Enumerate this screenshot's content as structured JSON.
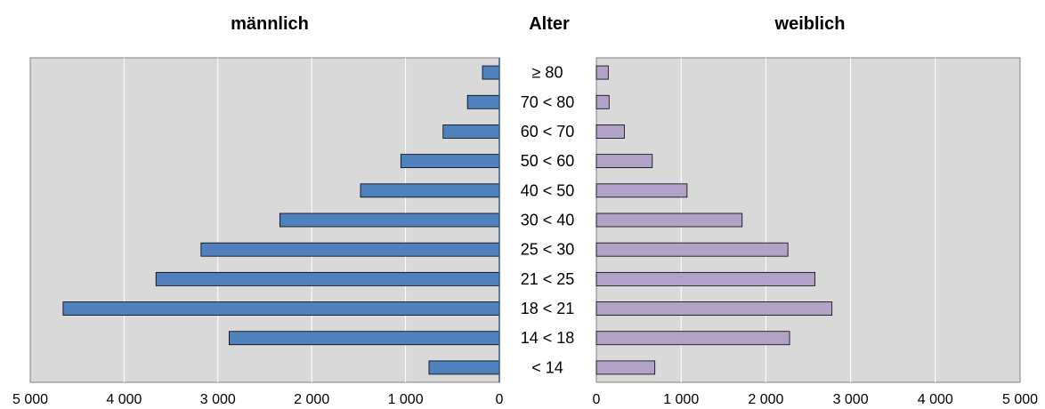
{
  "chart_data": {
    "type": "bar",
    "orientation": "horizontal",
    "layout": "population-pyramid",
    "center_title": "Alter",
    "categories": [
      "≥ 80",
      "70 < 80",
      "60 < 70",
      "50 < 60",
      "40 < 50",
      "30 < 40",
      "25 < 30",
      "21 < 25",
      "18 < 21",
      "14 < 18",
      "< 14"
    ],
    "series": [
      {
        "name": "männlich",
        "side": "left",
        "color": "#4f81bd",
        "values": [
          180,
          340,
          600,
          1050,
          1480,
          2340,
          3180,
          3660,
          4650,
          2880,
          750
        ]
      },
      {
        "name": "weiblich",
        "side": "right",
        "color": "#b3a2c7",
        "values": [
          140,
          150,
          330,
          660,
          1070,
          1720,
          2260,
          2580,
          2780,
          2280,
          690
        ]
      }
    ],
    "xlim": [
      0,
      5000
    ],
    "xticks": [
      0,
      1000,
      2000,
      3000,
      4000,
      5000
    ],
    "xtick_labels": [
      "0",
      "1 000",
      "2 000",
      "3 000",
      "4 000",
      "5 000"
    ],
    "grid": true,
    "plot_background": "#d9d9d9",
    "gridline_color": "#ffffff"
  }
}
